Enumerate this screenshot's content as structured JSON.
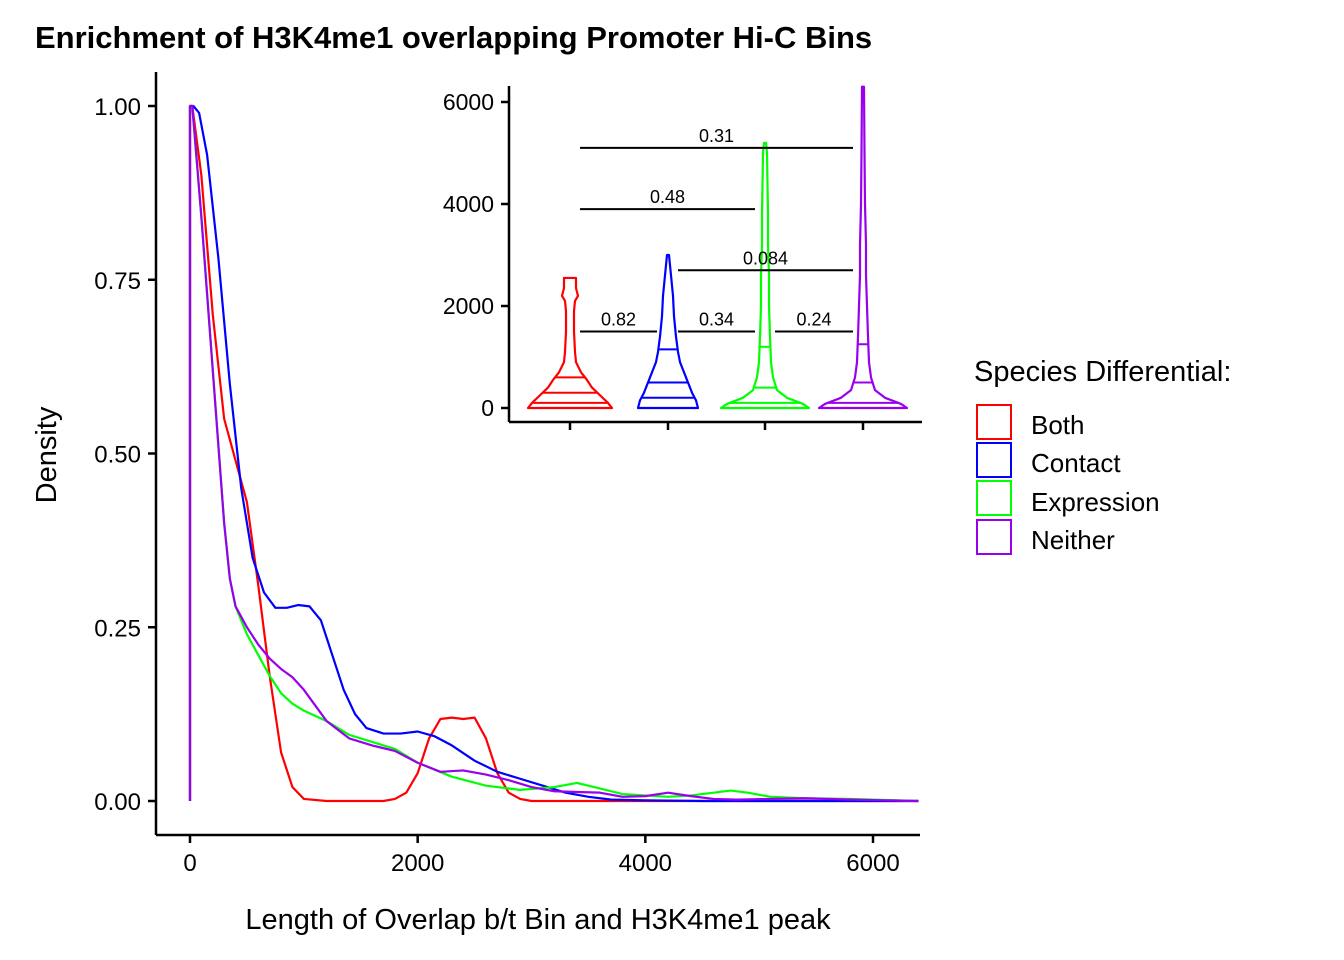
{
  "title": "Enrichment of H3K4me1 overlapping Promoter Hi-C Bins",
  "xlabel": "Length of Overlap b/t Bin and H3K4me1 peak",
  "ylabel": "Density",
  "legend": {
    "title": "Species Differential:",
    "placement": "right",
    "items": [
      {
        "label": "Both",
        "color": "#ff0000"
      },
      {
        "label": "Contact",
        "color": "#0000ff"
      },
      {
        "label": "Expression",
        "color": "#00ff00"
      },
      {
        "label": "Neither",
        "color": "#9900ee"
      }
    ]
  },
  "chart_data": [
    {
      "type": "line",
      "title": "Enrichment of H3K4me1 overlapping Promoter Hi-C Bins",
      "xlabel": "Length of Overlap b/t Bin and H3K4me1 peak",
      "ylabel": "Density",
      "xlim": [
        -300,
        6400
      ],
      "ylim": [
        -0.05,
        1.05
      ],
      "xticks": [
        0,
        2000,
        4000,
        6000
      ],
      "yticks": [
        0.0,
        0.25,
        0.5,
        0.75,
        1.0
      ],
      "ytick_labels": [
        "0.00",
        "0.25",
        "0.50",
        "0.75",
        "1.00"
      ],
      "grid": false,
      "series": [
        {
          "name": "Both",
          "color": "#ff0000",
          "x": [
            0,
            0,
            20,
            100,
            200,
            300,
            400,
            500,
            600,
            700,
            800,
            900,
            1000,
            1200,
            1500,
            1700,
            1800,
            1900,
            2000,
            2100,
            2200,
            2300,
            2400,
            2500,
            2600,
            2700,
            2800,
            2900,
            3000,
            6400
          ],
          "y": [
            0,
            1.0,
            1.0,
            0.9,
            0.7,
            0.55,
            0.49,
            0.43,
            0.31,
            0.18,
            0.07,
            0.02,
            0.003,
            0,
            0,
            0,
            0.003,
            0.012,
            0.04,
            0.09,
            0.118,
            0.12,
            0.118,
            0.12,
            0.09,
            0.04,
            0.012,
            0.003,
            0,
            0
          ]
        },
        {
          "name": "Contact",
          "color": "#0000ff",
          "x": [
            0,
            0,
            30,
            80,
            150,
            250,
            350,
            450,
            550,
            650,
            750,
            850,
            950,
            1050,
            1150,
            1250,
            1350,
            1450,
            1550,
            1700,
            1850,
            2000,
            2150,
            2300,
            2500,
            2700,
            2900,
            3100,
            3300,
            3500,
            3700,
            4000,
            4500,
            6400
          ],
          "y": [
            0,
            1.0,
            1.0,
            0.99,
            0.93,
            0.78,
            0.6,
            0.45,
            0.35,
            0.3,
            0.278,
            0.278,
            0.282,
            0.28,
            0.26,
            0.21,
            0.16,
            0.125,
            0.105,
            0.097,
            0.097,
            0.1,
            0.093,
            0.08,
            0.058,
            0.042,
            0.032,
            0.022,
            0.012,
            0.006,
            0.002,
            0.001,
            0,
            0
          ]
        },
        {
          "name": "Expression",
          "color": "#00ff00",
          "x": [
            0,
            0,
            20,
            100,
            200,
            300,
            350,
            400,
            450,
            500,
            600,
            700,
            800,
            900,
            1000,
            1200,
            1400,
            1600,
            1800,
            2000,
            2300,
            2600,
            2900,
            3200,
            3400,
            3600,
            3800,
            4000,
            4200,
            4400,
            4600,
            4750,
            4900,
            5100,
            5400,
            5800,
            6400
          ],
          "y": [
            0,
            1.0,
            1.0,
            0.84,
            0.62,
            0.4,
            0.32,
            0.28,
            0.26,
            0.24,
            0.21,
            0.18,
            0.155,
            0.14,
            0.13,
            0.115,
            0.095,
            0.085,
            0.075,
            0.055,
            0.035,
            0.022,
            0.016,
            0.02,
            0.026,
            0.018,
            0.01,
            0.008,
            0.006,
            0.008,
            0.012,
            0.015,
            0.012,
            0.006,
            0.004,
            0.003,
            0
          ]
        },
        {
          "name": "Neither",
          "color": "#9900ee",
          "x": [
            0,
            0,
            20,
            100,
            200,
            300,
            350,
            400,
            450,
            500,
            600,
            700,
            800,
            900,
            1000,
            1200,
            1400,
            1600,
            1800,
            2000,
            2200,
            2400,
            2600,
            2800,
            3000,
            3200,
            3400,
            3600,
            3800,
            4000,
            4200,
            4400,
            4600,
            4800,
            5100,
            5400,
            5800,
            6400
          ],
          "y": [
            0,
            1.0,
            1.0,
            0.84,
            0.62,
            0.4,
            0.32,
            0.28,
            0.265,
            0.25,
            0.225,
            0.205,
            0.19,
            0.178,
            0.16,
            0.115,
            0.09,
            0.08,
            0.072,
            0.055,
            0.042,
            0.044,
            0.038,
            0.03,
            0.02,
            0.014,
            0.013,
            0.012,
            0.006,
            0.007,
            0.012,
            0.007,
            0.003,
            0.002,
            0.003,
            0.004,
            0.002,
            0
          ]
        }
      ]
    },
    {
      "type": "violin",
      "ylim": [
        -300,
        6300
      ],
      "yticks": [
        0,
        2000,
        4000,
        6000
      ],
      "xticks_labels": [
        "",
        "",
        "",
        ""
      ],
      "groups": [
        {
          "name": "Both",
          "color": "#ff0000",
          "max": 2550,
          "median": 300,
          "quantiles": [
            100,
            300,
            600
          ],
          "profile": [
            [
              0,
              42
            ],
            [
              100,
              38
            ],
            [
              250,
              30
            ],
            [
              400,
              22
            ],
            [
              550,
              17
            ],
            [
              700,
              11
            ],
            [
              900,
              6
            ],
            [
              1100,
              5
            ],
            [
              1500,
              4
            ],
            [
              1900,
              4
            ],
            [
              2100,
              5
            ],
            [
              2200,
              8
            ],
            [
              2350,
              6
            ],
            [
              2550,
              6
            ]
          ]
        },
        {
          "name": "Contact",
          "color": "#0000ff",
          "max": 3000,
          "median": 500,
          "quantiles": [
            200,
            500,
            1150
          ],
          "profile": [
            [
              0,
              30
            ],
            [
              150,
              28
            ],
            [
              300,
              24
            ],
            [
              500,
              20
            ],
            [
              700,
              16
            ],
            [
              900,
              12
            ],
            [
              1100,
              10
            ],
            [
              1400,
              8
            ],
            [
              1800,
              6
            ],
            [
              2200,
              5
            ],
            [
              2600,
              3
            ],
            [
              3000,
              1
            ]
          ]
        },
        {
          "name": "Expression",
          "color": "#00ff00",
          "max": 5200,
          "median": 400,
          "quantiles": [
            100,
            400,
            1200
          ],
          "profile": [
            [
              0,
              44
            ],
            [
              80,
              38
            ],
            [
              200,
              22
            ],
            [
              350,
              12
            ],
            [
              600,
              8
            ],
            [
              900,
              6
            ],
            [
              1400,
              5
            ],
            [
              2000,
              4
            ],
            [
              2600,
              4
            ],
            [
              3200,
              3
            ],
            [
              3800,
              3
            ],
            [
              4400,
              2.5
            ],
            [
              5000,
              2
            ],
            [
              5200,
              1
            ]
          ]
        },
        {
          "name": "Neither",
          "color": "#9900ee",
          "max": 6300,
          "median": 500,
          "quantiles": [
            100,
            500,
            1250
          ],
          "profile": [
            [
              0,
              44
            ],
            [
              80,
              38
            ],
            [
              200,
              22
            ],
            [
              350,
              12
            ],
            [
              600,
              8
            ],
            [
              900,
              6
            ],
            [
              1400,
              5
            ],
            [
              2000,
              4
            ],
            [
              2600,
              3
            ],
            [
              3200,
              3
            ],
            [
              4000,
              2
            ],
            [
              5000,
              1.5
            ],
            [
              6300,
              1
            ]
          ]
        }
      ],
      "comparisons": [
        {
          "from": "Both",
          "to": "Contact",
          "p": "0.82"
        },
        {
          "from": "Contact",
          "to": "Expression",
          "p": "0.34"
        },
        {
          "from": "Expression",
          "to": "Neither",
          "p": "0.24"
        },
        {
          "from": "Contact",
          "to": "Neither",
          "p": "0.084"
        },
        {
          "from": "Both",
          "to": "Expression",
          "p": "0.48"
        },
        {
          "from": "Both",
          "to": "Neither",
          "p": "0.31"
        }
      ]
    }
  ]
}
